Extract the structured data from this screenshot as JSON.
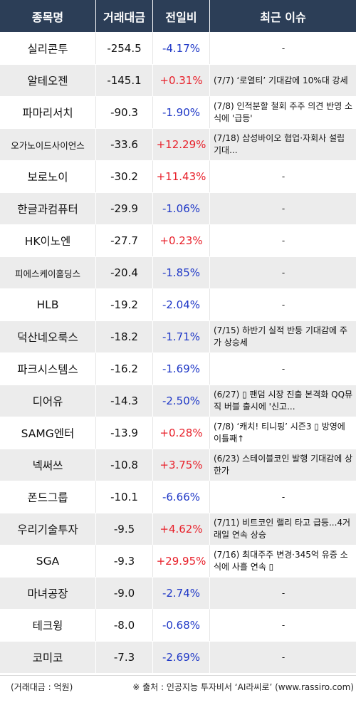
{
  "header": {
    "col_name": "종목명",
    "col_volume": "거래대금",
    "col_change": "전일비",
    "col_issue": "최근 이슈"
  },
  "rows": [
    {
      "name": "실리콘투",
      "volume": "-254.5",
      "change": "-4.17%",
      "direction": "down",
      "issue": "-"
    },
    {
      "name": "알테오젠",
      "volume": "-145.1",
      "change": "+0.31%",
      "direction": "up",
      "issue": "(7/7) ‘로열티’ 기대감에 10%대 강세"
    },
    {
      "name": "파마리서치",
      "volume": "-90.3",
      "change": "-1.90%",
      "direction": "down",
      "issue": "(7/8) 인적분할 철회 주주 의견 반영 소식에 '급등'"
    },
    {
      "name": "오가노이드사이언스",
      "volume": "-33.6",
      "change": "+12.29%",
      "direction": "up",
      "issue": "(7/18) 삼성바이오 협업·자회사 설립 기대..."
    },
    {
      "name": "보로노이",
      "volume": "-30.2",
      "change": "+11.43%",
      "direction": "up",
      "issue": "-"
    },
    {
      "name": "한글과컴퓨터",
      "volume": "-29.9",
      "change": "-1.06%",
      "direction": "down",
      "issue": "-"
    },
    {
      "name": "HK이노엔",
      "volume": "-27.7",
      "change": "+0.23%",
      "direction": "up",
      "issue": "-"
    },
    {
      "name": "피에스케이홀딩스",
      "volume": "-20.4",
      "change": "-1.85%",
      "direction": "down",
      "issue": "-"
    },
    {
      "name": "HLB",
      "volume": "-19.2",
      "change": "-2.04%",
      "direction": "down",
      "issue": "-"
    },
    {
      "name": "덕산네오룩스",
      "volume": "-18.2",
      "change": "-1.71%",
      "direction": "down",
      "issue": "(7/15) 하반기 실적 반등 기대감에 주가 상승세"
    },
    {
      "name": "파크시스템스",
      "volume": "-16.2",
      "change": "-1.69%",
      "direction": "down",
      "issue": "-"
    },
    {
      "name": "디어유",
      "volume": "-14.3",
      "change": "-2.50%",
      "direction": "down",
      "issue": "(6/27) ▯ 팬덤 시장 진출 본격화 QQ뮤직 버블 출시에 '신고..."
    },
    {
      "name": "SAMG엔터",
      "volume": "-13.9",
      "change": "+0.28%",
      "direction": "up",
      "issue": "(7/8) ‘캐치! 티니핑’ 시즌3 ▯ 방영에 이틀째↑"
    },
    {
      "name": "넥써쓰",
      "volume": "-10.8",
      "change": "+3.75%",
      "direction": "up",
      "issue": "(6/23) 스테이블코인 발행 기대감에 상한가"
    },
    {
      "name": "폰드그룹",
      "volume": "-10.1",
      "change": "-6.66%",
      "direction": "down",
      "issue": "-"
    },
    {
      "name": "우리기술투자",
      "volume": "-9.5",
      "change": "+4.62%",
      "direction": "up",
      "issue": "(7/11) 비트코인 랠리 타고 급등...4거래일 연속 상승"
    },
    {
      "name": "SGA",
      "volume": "-9.3",
      "change": "+29.95%",
      "direction": "up",
      "issue": "(7/16) 최대주주 변경·345억 유증 소식에 사흘 연속 ▯"
    },
    {
      "name": "마녀공장",
      "volume": "-9.0",
      "change": "-2.74%",
      "direction": "down",
      "issue": "-"
    },
    {
      "name": "테크윙",
      "volume": "-8.0",
      "change": "-0.68%",
      "direction": "down",
      "issue": "-"
    },
    {
      "name": "코미코",
      "volume": "-7.3",
      "change": "-2.69%",
      "direction": "down",
      "issue": "-"
    }
  ],
  "footer": {
    "unit_note": "(거래대금 : 억원)",
    "source_note": "※ 출처 : 인공지능 투자비서 ‘AI라씨로’ (www.rassiro.com)"
  },
  "colors": {
    "header_bg": "#2c3e57",
    "up": "#e8202a",
    "down": "#1f38c7",
    "stripe": "#ececec"
  }
}
